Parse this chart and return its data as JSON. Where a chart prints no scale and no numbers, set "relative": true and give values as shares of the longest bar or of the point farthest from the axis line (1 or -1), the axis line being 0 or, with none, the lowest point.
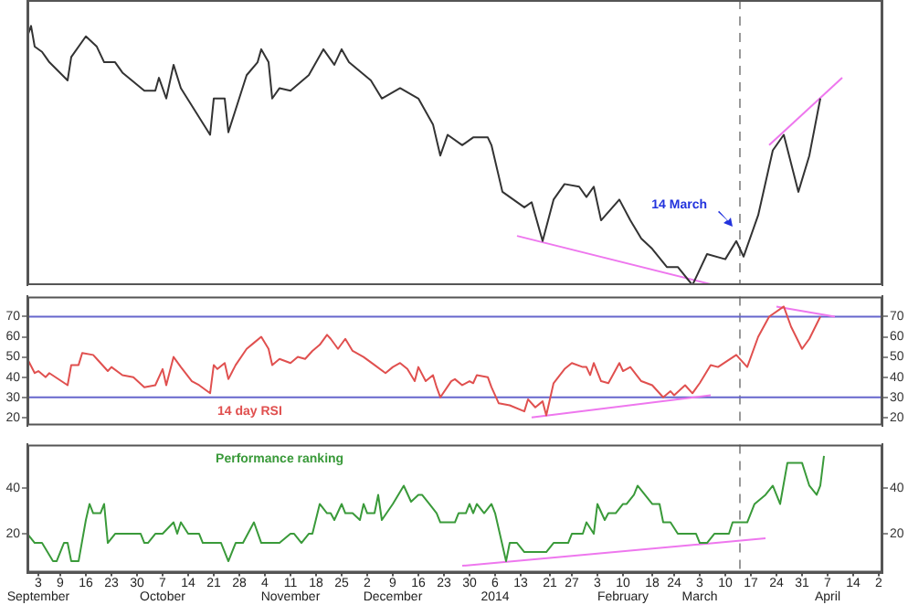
{
  "chart_data": [
    {
      "type": "line",
      "relative": true,
      "tick_labels": false,
      "legend": false,
      "xlim": [
        "2013-08-31",
        "2014-04-22"
      ],
      "x": [
        "2013-08-31",
        "2013-09-01",
        "2013-09-02",
        "2013-09-04",
        "2013-09-05",
        "2013-09-06",
        "2013-09-11",
        "2013-09-12",
        "2013-09-16",
        "2013-09-19",
        "2013-09-21",
        "2013-09-24",
        "2013-09-26",
        "2013-10-02",
        "2013-10-05",
        "2013-10-06",
        "2013-10-08",
        "2013-10-10",
        "2013-10-12",
        "2013-10-16",
        "2013-10-20",
        "2013-10-21",
        "2013-10-24",
        "2013-10-25",
        "2013-10-30",
        "2013-11-02",
        "2013-11-03",
        "2013-11-05",
        "2013-11-06",
        "2013-11-08",
        "2013-11-11",
        "2013-11-16",
        "2013-11-20",
        "2013-11-23",
        "2013-11-25",
        "2013-11-27",
        "2013-12-03",
        "2013-12-06",
        "2013-12-11",
        "2013-12-16",
        "2013-12-18",
        "2013-12-20",
        "2013-12-22",
        "2013-12-24",
        "2013-12-28",
        "2013-12-31",
        "2014-01-04",
        "2014-01-05",
        "2014-01-08",
        "2014-01-14",
        "2014-01-16",
        "2014-01-19",
        "2014-01-22",
        "2014-01-25",
        "2014-01-29",
        "2014-01-31",
        "2014-02-02",
        "2014-02-04",
        "2014-02-09",
        "2014-02-12",
        "2014-02-15",
        "2014-02-18",
        "2014-02-22",
        "2014-02-25",
        "2014-03-01",
        "2014-03-05",
        "2014-03-10",
        "2014-03-13",
        "2014-03-15",
        "2014-03-19",
        "2014-03-23",
        "2014-03-26",
        "2014-03-30",
        "2014-04-02",
        "2014-04-05"
      ],
      "series": [
        {
          "color": "#333333",
          "values": [
            0.96,
            1.0,
            0.92,
            0.9,
            0.88,
            0.86,
            0.79,
            0.88,
            0.96,
            0.92,
            0.86,
            0.86,
            0.82,
            0.75,
            0.75,
            0.8,
            0.72,
            0.85,
            0.76,
            0.67,
            0.58,
            0.72,
            0.72,
            0.59,
            0.81,
            0.86,
            0.91,
            0.86,
            0.72,
            0.76,
            0.75,
            0.81,
            0.91,
            0.85,
            0.91,
            0.86,
            0.79,
            0.72,
            0.76,
            0.72,
            0.67,
            0.62,
            0.5,
            0.58,
            0.54,
            0.57,
            0.57,
            0.54,
            0.36,
            0.3,
            0.32,
            0.17,
            0.33,
            0.39,
            0.38,
            0.34,
            0.38,
            0.25,
            0.33,
            0.25,
            0.18,
            0.14,
            0.07,
            0.07,
            0.0,
            0.12,
            0.1,
            0.17,
            0.11,
            0.27,
            0.52,
            0.58,
            0.36,
            0.5,
            0.72
          ]
        },
        {
          "type": "line",
          "color": "#ee77ee",
          "x": [
            "2014-01-12",
            "2014-03-07"
          ],
          "values": [
            0.19,
            0.0
          ]
        },
        {
          "type": "line",
          "color": "#ee77ee",
          "x": [
            "2014-03-22",
            "2014-04-11"
          ],
          "values": [
            0.54,
            0.8
          ]
        }
      ],
      "ref_lines": [
        {
          "axis": "x",
          "value": "2014-03-14",
          "color": "#999999",
          "line_style": "dashed"
        }
      ],
      "annotations": [
        {
          "text": "14 March",
          "x": "2014-03-14",
          "y": 0.31
        }
      ]
    },
    {
      "type": "line",
      "tick_labels": "y",
      "legend": false,
      "xlim": [
        "2013-08-31",
        "2014-04-22"
      ],
      "ylim": [
        16,
        80
      ],
      "yticks": [
        20,
        30,
        40,
        50,
        60,
        70
      ],
      "y2lim": [
        16,
        80
      ],
      "y2ticks": [
        20,
        30,
        40,
        50,
        60,
        70
      ],
      "x": [
        "2013-08-31",
        "2013-09-02",
        "2013-09-03",
        "2013-09-05",
        "2013-09-06",
        "2013-09-11",
        "2013-09-12",
        "2013-09-14",
        "2013-09-15",
        "2013-09-18",
        "2013-09-19",
        "2013-09-22",
        "2013-09-23",
        "2013-09-26",
        "2013-09-29",
        "2013-10-02",
        "2013-10-05",
        "2013-10-07",
        "2013-10-08",
        "2013-10-10",
        "2013-10-12",
        "2013-10-15",
        "2013-10-17",
        "2013-10-20",
        "2013-10-21",
        "2013-10-22",
        "2013-10-24",
        "2013-10-25",
        "2013-10-27",
        "2013-10-30",
        "2013-11-01",
        "2013-11-03",
        "2013-11-05",
        "2013-11-06",
        "2013-11-08",
        "2013-11-11",
        "2013-11-13",
        "2013-11-15",
        "2013-11-17",
        "2013-11-19",
        "2013-11-21",
        "2013-11-22",
        "2013-11-24",
        "2013-11-26",
        "2013-11-28",
        "2013-12-01",
        "2013-12-04",
        "2013-12-07",
        "2013-12-09",
        "2013-12-11",
        "2013-12-13",
        "2013-12-15",
        "2013-12-16",
        "2013-12-18",
        "2013-12-20",
        "2013-12-21",
        "2013-12-22",
        "2013-12-25",
        "2013-12-26",
        "2013-12-28",
        "2013-12-30",
        "2013-12-31",
        "2014-01-01",
        "2014-01-04",
        "2014-01-05",
        "2014-01-07",
        "2014-01-10",
        "2014-01-14",
        "2014-01-15",
        "2014-01-17",
        "2014-01-19",
        "2014-01-20",
        "2014-01-22",
        "2014-01-25",
        "2014-01-27",
        "2014-01-30",
        "2014-01-31",
        "2014-02-01",
        "2014-02-02",
        "2014-02-04",
        "2014-02-06",
        "2014-02-09",
        "2014-02-10",
        "2014-02-12",
        "2014-02-15",
        "2014-02-18",
        "2014-02-21",
        "2014-02-23",
        "2014-02-24",
        "2014-02-27",
        "2014-03-01",
        "2014-03-03",
        "2014-03-06",
        "2014-03-08",
        "2014-03-13",
        "2014-03-16",
        "2014-03-19",
        "2014-03-22",
        "2014-03-26",
        "2014-03-28",
        "2014-03-31",
        "2014-04-02",
        "2014-04-05"
      ],
      "series": [
        {
          "color": "#e0504f",
          "values": [
            49,
            42,
            43,
            40,
            42,
            36,
            46,
            46,
            52,
            51,
            49,
            43,
            45,
            41,
            40,
            35,
            36,
            44,
            36,
            50,
            45,
            38,
            36,
            32,
            46,
            44,
            47,
            39,
            46,
            54,
            57,
            60,
            54,
            46,
            49,
            47,
            50,
            49,
            53,
            56,
            61,
            59,
            54,
            59,
            53,
            50,
            46,
            42,
            45,
            47,
            44,
            38,
            45,
            38,
            41,
            35,
            30,
            38,
            39,
            36,
            38,
            37,
            41,
            40,
            35,
            27,
            26,
            23,
            29,
            25,
            28,
            21,
            37,
            44,
            47,
            45,
            45,
            41,
            47,
            38,
            37,
            47,
            43,
            45,
            38,
            36,
            30,
            33,
            31,
            36,
            32,
            37,
            46,
            45,
            51,
            45,
            60,
            70,
            75,
            65,
            54,
            59,
            70
          ]
        },
        {
          "type": "line",
          "color": "#ee77ee",
          "x": [
            "2014-01-16",
            "2014-03-06"
          ],
          "values": [
            20,
            31
          ]
        },
        {
          "type": "line",
          "color": "#ee77ee",
          "x": [
            "2014-03-24",
            "2014-04-09"
          ],
          "values": [
            75,
            70
          ]
        }
      ],
      "ref_lines": [
        {
          "axis": "x",
          "value": "2014-03-14",
          "color": "#999999",
          "line_style": "dashed"
        },
        {
          "axis": "y",
          "value": 70,
          "color": "#6666cc"
        },
        {
          "axis": "y",
          "value": 30,
          "color": "#6666cc"
        }
      ],
      "annotations": [
        "14 day RSI"
      ]
    },
    {
      "type": "line",
      "legend": false,
      "xlim": [
        "2013-08-31",
        "2014-04-22"
      ],
      "xticks": [
        {
          "value": "2013-09-03",
          "label": "3\nSeptember"
        },
        {
          "value": "2013-09-09",
          "label": "9"
        },
        {
          "value": "2013-09-16",
          "label": "16"
        },
        {
          "value": "2013-09-23",
          "label": "23"
        },
        {
          "value": "2013-09-30",
          "label": "30"
        },
        {
          "value": "2013-10-07",
          "label": "7\nOctober"
        },
        {
          "value": "2013-10-14",
          "label": "14"
        },
        {
          "value": "2013-10-21",
          "label": "21"
        },
        {
          "value": "2013-10-28",
          "label": "28"
        },
        {
          "value": "2013-11-04",
          "label": "4"
        },
        {
          "value": "2013-11-11",
          "label": "11\nNovember"
        },
        {
          "value": "2013-11-18",
          "label": "18"
        },
        {
          "value": "2013-11-25",
          "label": "25"
        },
        {
          "value": "2013-12-02",
          "label": "2"
        },
        {
          "value": "2013-12-09",
          "label": "9\nDecember"
        },
        {
          "value": "2013-12-16",
          "label": "16"
        },
        {
          "value": "2013-12-23",
          "label": "23"
        },
        {
          "value": "2013-12-30",
          "label": "30"
        },
        {
          "value": "2014-01-06",
          "label": "6\n2014"
        },
        {
          "value": "2014-01-13",
          "label": "13"
        },
        {
          "value": "2014-01-21",
          "label": "21"
        },
        {
          "value": "2014-01-27",
          "label": "27"
        },
        {
          "value": "2014-02-03",
          "label": "3"
        },
        {
          "value": "2014-02-10",
          "label": "10\nFebruary"
        },
        {
          "value": "2014-02-18",
          "label": "18"
        },
        {
          "value": "2014-02-24",
          "label": "24"
        },
        {
          "value": "2014-03-03",
          "label": "3\nMarch"
        },
        {
          "value": "2014-03-10",
          "label": "10"
        },
        {
          "value": "2014-03-17",
          "label": "17"
        },
        {
          "value": "2014-03-24",
          "label": "24"
        },
        {
          "value": "2014-03-31",
          "label": "31"
        },
        {
          "value": "2014-04-07",
          "label": "7\nApril"
        },
        {
          "value": "2014-04-14",
          "label": "14"
        },
        {
          "value": "2014-04-21",
          "label": "2"
        }
      ],
      "ylim": [
        3,
        59
      ],
      "yticks": [
        20,
        40
      ],
      "y2lim": [
        3,
        59
      ],
      "y2ticks": [
        20,
        40
      ],
      "x": [
        "2013-08-31",
        "2013-09-02",
        "2013-09-04",
        "2013-09-07",
        "2013-09-08",
        "2013-09-10",
        "2013-09-11",
        "2013-09-12",
        "2013-09-14",
        "2013-09-16",
        "2013-09-17",
        "2013-09-18",
        "2013-09-20",
        "2013-09-21",
        "2013-09-22",
        "2013-09-24",
        "2013-10-01",
        "2013-10-02",
        "2013-10-03",
        "2013-10-05",
        "2013-10-07",
        "2013-10-10",
        "2013-10-11",
        "2013-10-12",
        "2013-10-14",
        "2013-10-17",
        "2013-10-18",
        "2013-10-23",
        "2013-10-25",
        "2013-10-27",
        "2013-10-29",
        "2013-11-01",
        "2013-11-03",
        "2013-11-08",
        "2013-11-11",
        "2013-11-12",
        "2013-11-14",
        "2013-11-16",
        "2013-11-17",
        "2013-11-19",
        "2013-11-21",
        "2013-11-22",
        "2013-11-23",
        "2013-11-25",
        "2013-11-26",
        "2013-11-28",
        "2013-11-30",
        "2013-12-01",
        "2013-12-02",
        "2013-12-04",
        "2013-12-05",
        "2013-12-06",
        "2013-12-09",
        "2013-12-12",
        "2013-12-14",
        "2013-12-16",
        "2013-12-17",
        "2013-12-19",
        "2013-12-21",
        "2013-12-22",
        "2013-12-26",
        "2013-12-27",
        "2013-12-29",
        "2013-12-30",
        "2013-12-31",
        "2014-01-01",
        "2014-01-03",
        "2014-01-05",
        "2014-01-06",
        "2014-01-08",
        "2014-01-09",
        "2014-01-10",
        "2014-01-12",
        "2014-01-14",
        "2014-01-20",
        "2014-01-22",
        "2014-01-26",
        "2014-01-27",
        "2014-01-30",
        "2014-01-31",
        "2014-02-02",
        "2014-02-03",
        "2014-02-05",
        "2014-02-06",
        "2014-02-08",
        "2014-02-10",
        "2014-02-11",
        "2014-02-13",
        "2014-02-14",
        "2014-02-16",
        "2014-02-18",
        "2014-02-20",
        "2014-02-21",
        "2014-02-23",
        "2014-02-25",
        "2014-03-02",
        "2014-03-03",
        "2014-03-05",
        "2014-03-07",
        "2014-03-11",
        "2014-03-12",
        "2014-03-16",
        "2014-03-18",
        "2014-03-21",
        "2014-03-23",
        "2014-03-25",
        "2014-03-27",
        "2014-03-31",
        "2014-04-02",
        "2014-04-04",
        "2014-04-05",
        "2014-04-06"
      ],
      "series": [
        {
          "color": "#3a9a3a",
          "values": [
            20,
            16,
            16,
            8,
            8,
            16,
            16,
            8,
            8,
            26,
            33,
            29,
            29,
            33,
            16,
            20,
            20,
            16,
            16,
            20,
            20,
            25,
            20,
            25,
            20,
            20,
            16,
            16,
            8,
            16,
            16,
            25,
            16,
            16,
            20,
            20,
            16,
            20,
            20,
            33,
            29,
            29,
            26,
            33,
            29,
            29,
            26,
            33,
            29,
            29,
            37,
            26,
            33,
            41,
            34,
            37,
            37,
            33,
            29,
            25,
            25,
            29,
            29,
            33,
            29,
            33,
            29,
            33,
            29,
            15,
            8,
            16,
            16,
            12,
            12,
            16,
            16,
            20,
            20,
            25,
            20,
            33,
            26,
            29,
            29,
            33,
            33,
            37,
            41,
            37,
            33,
            33,
            25,
            25,
            20,
            20,
            16,
            16,
            20,
            20,
            25,
            25,
            33,
            37,
            41,
            33,
            51,
            51,
            41,
            37,
            41,
            54
          ]
        },
        {
          "type": "line",
          "color": "#ee77ee",
          "x": [
            "2013-12-28",
            "2014-03-21"
          ],
          "values": [
            6,
            18
          ]
        }
      ],
      "ref_lines": [
        {
          "axis": "x",
          "value": "2014-03-14",
          "color": "#999999",
          "line_style": "dashed"
        }
      ],
      "annotations": [
        "Performance ranking"
      ]
    }
  ]
}
